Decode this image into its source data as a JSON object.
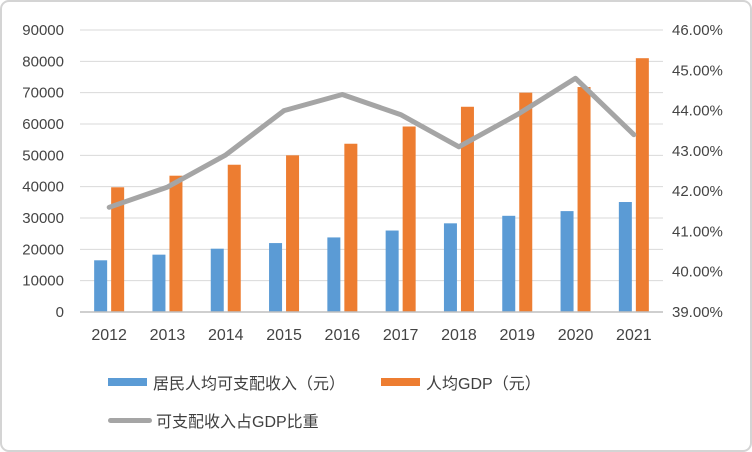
{
  "chart_data": {
    "type": "bar",
    "subtype": "combo-bar-line-dual-axis",
    "categories": [
      "2012",
      "2013",
      "2014",
      "2015",
      "2016",
      "2017",
      "2018",
      "2019",
      "2020",
      "2021"
    ],
    "series": [
      {
        "name": "居民人均可支配收入（元）",
        "type": "bar",
        "axis": "left",
        "color": "#5B9BD5",
        "values": [
          16500,
          18300,
          20200,
          22000,
          23800,
          26000,
          28300,
          30700,
          32200,
          35100
        ]
      },
      {
        "name": "人均GDP（元）",
        "type": "bar",
        "axis": "left",
        "color": "#ED7D31",
        "values": [
          39800,
          43500,
          47000,
          50000,
          53700,
          59200,
          65500,
          70000,
          71800,
          81000
        ]
      },
      {
        "name": "可支配收入占GDP比重",
        "type": "line",
        "axis": "right",
        "color": "#A5A5A5",
        "values": [
          41.6,
          42.1,
          42.9,
          44.0,
          44.4,
          43.9,
          43.1,
          43.9,
          44.8,
          43.4
        ]
      }
    ],
    "left_axis": {
      "min": 0,
      "max": 90000,
      "step": 10000,
      "ticks": [
        "0",
        "10000",
        "20000",
        "30000",
        "40000",
        "50000",
        "60000",
        "70000",
        "80000",
        "90000"
      ]
    },
    "right_axis": {
      "min": 39,
      "max": 46,
      "step": 1,
      "ticks": [
        "39.00%",
        "40.00%",
        "41.00%",
        "42.00%",
        "43.00%",
        "44.00%",
        "45.00%",
        "46.00%"
      ]
    },
    "grid": true,
    "legend_position": "bottom-left",
    "title": ""
  },
  "colors": {
    "grid": "#D9D9D9",
    "axis_line": "#BFBFBF",
    "tick_text": "#444444",
    "background": "#FFFFFF",
    "income_bar": "#5B9BD5",
    "gdp_bar": "#ED7D31",
    "ratio_line": "#A5A5A5"
  }
}
